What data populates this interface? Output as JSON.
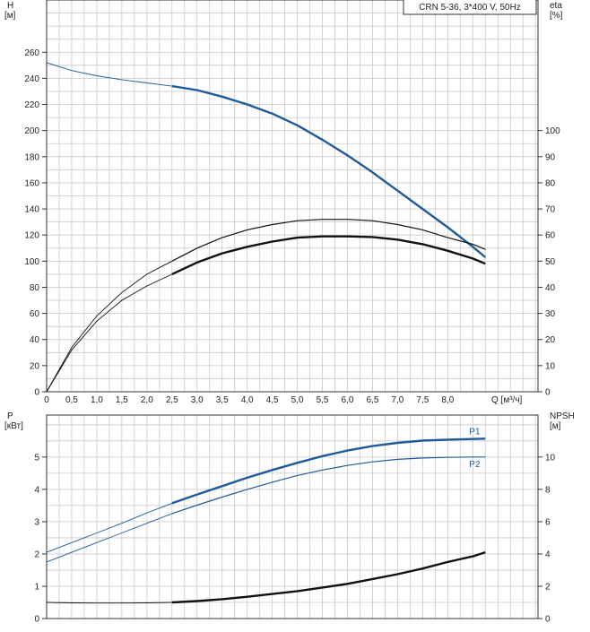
{
  "colors": {
    "grid": "#c8c8c8",
    "axis": "#333333",
    "blue": "#1f5a99",
    "black": "#111111"
  },
  "chart_data": [
    {
      "type": "line",
      "legend_text": "CRN 5-36, 3*400 V, 50Hz",
      "left_axis": {
        "unit_line1": "H",
        "unit_line2": "[м]",
        "ylim": [
          0,
          300
        ],
        "ticks": [
          0,
          20,
          40,
          60,
          80,
          100,
          120,
          140,
          160,
          180,
          200,
          220,
          240,
          260
        ]
      },
      "right_axis": {
        "unit_line1": "eta",
        "unit_line2": "[%]",
        "ylim": [
          0,
          150
        ],
        "ticks": [
          0,
          10,
          20,
          30,
          40,
          50,
          60,
          70,
          80,
          90,
          100
        ]
      },
      "x_axis": {
        "label": "Q [м³/ч]",
        "xlim": [
          0,
          9.8
        ],
        "ticks": [
          0,
          0.5,
          1.0,
          1.5,
          2.0,
          2.5,
          3.0,
          3.5,
          4.0,
          4.5,
          5.0,
          5.5,
          6.0,
          6.5,
          7.0,
          7.5,
          8.0
        ],
        "tick_labels": [
          "0",
          "0,5",
          "1,0",
          "1,5",
          "2,0",
          "2,5",
          "3,0",
          "3,5",
          "4,0",
          "4,5",
          "5,0",
          "5,5",
          "6,0",
          "6,5",
          "7,0",
          "7,5",
          "8,0"
        ]
      },
      "grid": true,
      "series": [
        {
          "axis": "left",
          "color_key": "blue",
          "thin_x": [
            0,
            0.5,
            1.0,
            1.5,
            2.0,
            2.5
          ],
          "thin_y": [
            252,
            246,
            242,
            239,
            236.5,
            234
          ],
          "thick_x": [
            2.5,
            3.0,
            3.5,
            4.0,
            4.5,
            5.0,
            5.5,
            6.0,
            6.5,
            7.0,
            7.5,
            8.0,
            8.5,
            8.75
          ],
          "thick_y": [
            234,
            231,
            226,
            220,
            213,
            204,
            193,
            181,
            168,
            154,
            140,
            126,
            111,
            103
          ]
        },
        {
          "axis": "right",
          "color_key": "black",
          "thin_x": [
            0,
            0.5,
            1.0,
            1.5,
            2.0,
            2.5
          ],
          "thin_y": [
            0,
            17,
            29,
            38,
            45,
            50
          ],
          "thick_x": [
            2.5,
            3.0,
            3.5,
            4.0,
            4.5,
            5.0,
            5.5,
            6.0,
            6.5,
            7.0,
            7.5,
            8.0,
            8.5,
            8.75
          ],
          "thick_y": [
            50,
            55,
            59,
            62,
            64,
            65.5,
            66,
            66,
            65.5,
            64,
            62,
            59,
            56.5,
            54.5
          ],
          "thick_width": 1.2
        },
        {
          "axis": "left",
          "color_key": "black",
          "thin_x": [
            0,
            0.5,
            1.0,
            1.5,
            2.0,
            2.5
          ],
          "thin_y": [
            0,
            32,
            54,
            70,
            81,
            90
          ],
          "thick_x": [
            2.5,
            3.0,
            3.5,
            4.0,
            4.5,
            5.0,
            5.5,
            6.0,
            6.5,
            7.0,
            7.5,
            8.0,
            8.5,
            8.75
          ],
          "thick_y": [
            90,
            99,
            106,
            111,
            115,
            118,
            119,
            119,
            118.5,
            116.5,
            113,
            108,
            102,
            98
          ]
        }
      ]
    },
    {
      "type": "line",
      "left_axis": {
        "unit_line1": "P",
        "unit_line2": "[кВт]",
        "ylim": [
          0,
          6.3
        ],
        "ticks": [
          0,
          1,
          2,
          3,
          4,
          5
        ]
      },
      "right_axis": {
        "unit_line1": "NPSH",
        "unit_line2": "[м]",
        "ylim": [
          0,
          12.6
        ],
        "ticks": [
          0,
          2,
          4,
          6,
          8,
          10
        ]
      },
      "x_axis": {
        "xlim": [
          0,
          9.8
        ]
      },
      "grid": true,
      "series": [
        {
          "name": "P1",
          "axis": "left",
          "color_key": "blue",
          "thin_x": [
            0,
            0.5,
            1.0,
            1.5,
            2.0,
            2.5
          ],
          "thin_y": [
            2.05,
            2.35,
            2.65,
            2.95,
            3.27,
            3.57
          ],
          "thick_x": [
            2.5,
            3.0,
            3.5,
            4.0,
            4.5,
            5.0,
            5.5,
            6.0,
            6.5,
            7.0,
            7.5,
            8.0,
            8.5,
            8.75
          ],
          "thick_y": [
            3.57,
            3.84,
            4.1,
            4.36,
            4.6,
            4.82,
            5.03,
            5.2,
            5.34,
            5.44,
            5.51,
            5.54,
            5.56,
            5.57
          ]
        },
        {
          "name": "P2",
          "axis": "left",
          "color_key": "blue",
          "thin_x": [
            0,
            0.5,
            1.0,
            1.5,
            2.0,
            2.5
          ],
          "thin_y": [
            1.75,
            2.05,
            2.35,
            2.65,
            2.95,
            3.25
          ],
          "thick_x": [
            2.5,
            3.0,
            3.5,
            4.0,
            4.5,
            5.0,
            5.5,
            6.0,
            6.5,
            7.0,
            7.5,
            8.0,
            8.5,
            8.75
          ],
          "thick_y": [
            3.25,
            3.51,
            3.76,
            4.0,
            4.22,
            4.43,
            4.6,
            4.74,
            4.85,
            4.93,
            4.97,
            4.99,
            5.0,
            5.0
          ],
          "thick_width": 1.2
        },
        {
          "axis": "right",
          "color_key": "black",
          "thin_x": [
            0,
            0.5,
            1.0,
            1.5,
            2.0,
            2.5
          ],
          "thin_y": [
            1.0,
            0.97,
            0.96,
            0.96,
            0.97,
            1.0
          ],
          "thick_x": [
            2.5,
            3.0,
            3.5,
            4.0,
            4.5,
            5.0,
            5.5,
            6.0,
            6.5,
            7.0,
            7.5,
            8.0,
            8.5,
            8.75
          ],
          "thick_y": [
            1.0,
            1.08,
            1.2,
            1.35,
            1.52,
            1.7,
            1.92,
            2.15,
            2.45,
            2.75,
            3.1,
            3.5,
            3.85,
            4.1
          ]
        }
      ]
    }
  ]
}
